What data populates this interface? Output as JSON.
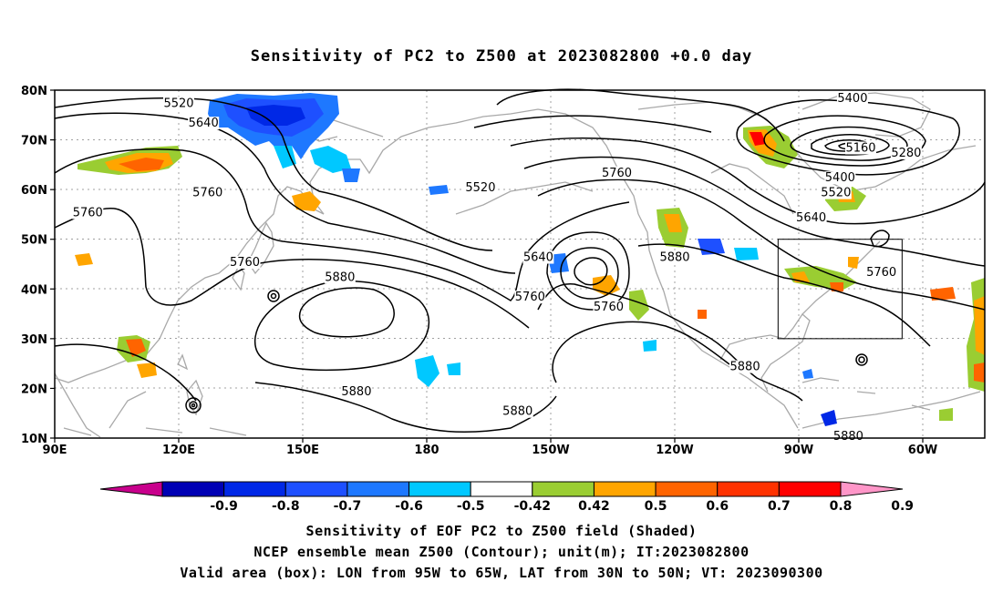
{
  "title": "Sensitivity of PC2 to Z500 at 2023082800 +0.0 day",
  "map": {
    "lat_labels": [
      "80N",
      "70N",
      "60N",
      "50N",
      "40N",
      "30N",
      "20N",
      "10N"
    ],
    "lon_labels": [
      "90E",
      "120E",
      "150E",
      "180",
      "150W",
      "120W",
      "90W",
      "60W"
    ],
    "contour_labels": [
      {
        "text": "5520",
        "lon": 120,
        "lat": 77
      },
      {
        "text": "5640",
        "lon": 126,
        "lat": 73
      },
      {
        "text": "5760",
        "lon": 127,
        "lat": 59
      },
      {
        "text": "5760",
        "lon": 98,
        "lat": 55
      },
      {
        "text": "5760",
        "lon": 136,
        "lat": 45
      },
      {
        "text": "5880",
        "lon": 159,
        "lat": 42
      },
      {
        "text": "5520",
        "lon": 193,
        "lat": 60
      },
      {
        "text": "5640",
        "lon": 207,
        "lat": 46
      },
      {
        "text": "5760",
        "lon": 205,
        "lat": 38
      },
      {
        "text": "5760",
        "lon": 224,
        "lat": 36
      },
      {
        "text": "5760",
        "lon": 226,
        "lat": 63
      },
      {
        "text": "5880",
        "lon": 240,
        "lat": 46
      },
      {
        "text": "5880",
        "lon": 163,
        "lat": 19
      },
      {
        "text": "5880",
        "lon": 202,
        "lat": 15
      },
      {
        "text": "5880",
        "lon": 257,
        "lat": 24
      },
      {
        "text": "5400",
        "lon": 283,
        "lat": 78
      },
      {
        "text": "5160",
        "lon": 285,
        "lat": 68
      },
      {
        "text": "5280",
        "lon": 296,
        "lat": 67
      },
      {
        "text": "5400",
        "lon": 280,
        "lat": 62
      },
      {
        "text": "5520",
        "lon": 279,
        "lat": 59
      },
      {
        "text": "5640",
        "lon": 273,
        "lat": 54
      },
      {
        "text": "5760",
        "lon": 290,
        "lat": 43
      },
      {
        "text": "5880",
        "lon": 282,
        "lat": 10
      }
    ],
    "valid_box": {
      "lon_min": 265,
      "lon_max": 295,
      "lat_min": 30,
      "lat_max": 50
    }
  },
  "colorbar": {
    "labels": [
      "-0.9",
      "-0.8",
      "-0.7",
      "-0.6",
      "-0.5",
      "-0.42",
      "0.42",
      "0.5",
      "0.6",
      "0.7",
      "0.8",
      "0.9"
    ],
    "colors": [
      "#c8008c",
      "#0000b4",
      "#0028e6",
      "#1e50ff",
      "#1e78ff",
      "#00c8ff",
      "#ffffff",
      "#9acd32",
      "#ffa500",
      "#ff6400",
      "#ff3200",
      "#ff0000",
      "#ff96c8"
    ]
  },
  "caption": {
    "line1": "Sensitivity of EOF PC2 to Z500 field (Shaded)",
    "line2": "NCEP ensemble mean Z500 (Contour); unit(m); IT:2023082800",
    "line3": "Valid area (box): LON from 95W to 65W, LAT from 30N to 50N; VT: 2023090300"
  }
}
